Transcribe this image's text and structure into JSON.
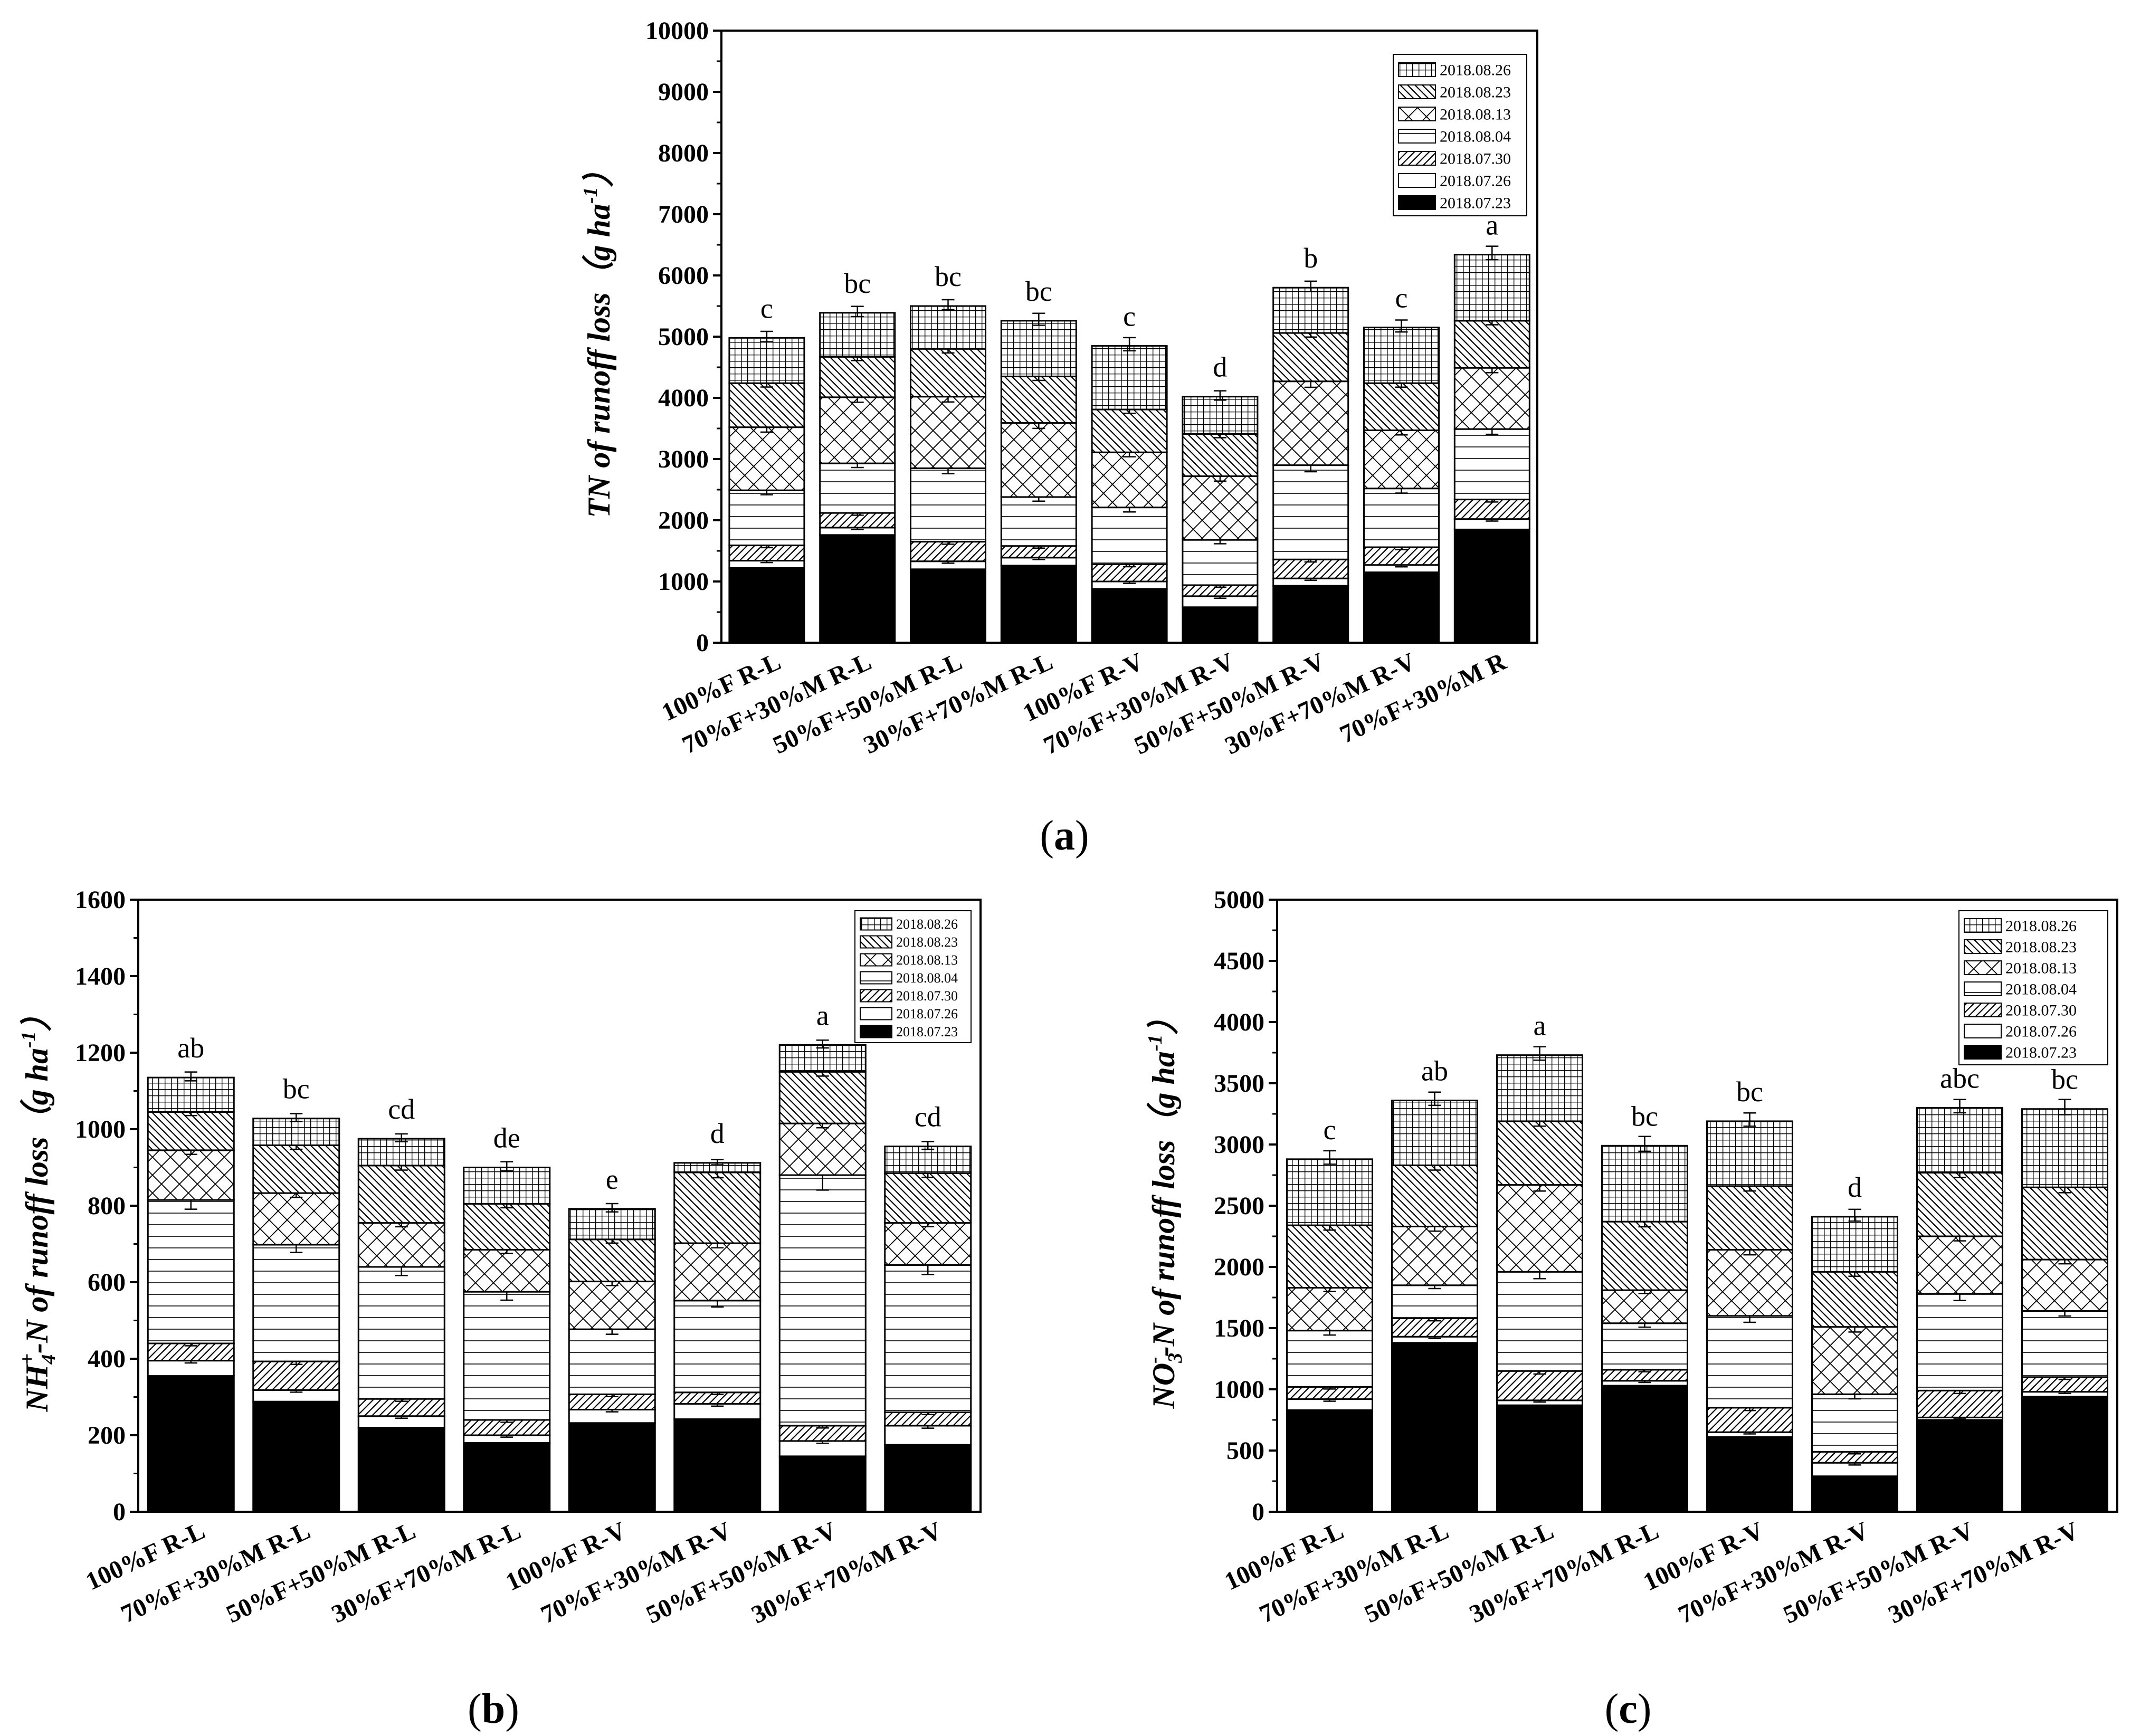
{
  "chart_data": [
    {
      "id": "a",
      "type": "bar",
      "stacked": true,
      "panel_label": "a",
      "ylabel": "TN of runoff loss（g ha^-1）",
      "ylabel_parts": {
        "main": "TN of runoff loss（g ha",
        "sup": "-1",
        "end": "）"
      },
      "ylim": [
        0,
        10000
      ],
      "yticks": [
        "0",
        "1000",
        "2000",
        "3000",
        "4000",
        "5000",
        "6000",
        "7000",
        "8000",
        "9000",
        "10000"
      ],
      "legend_position": "top-right",
      "categories": [
        "100%F R-L",
        "70%F+30%M R-L",
        "50%F+50%M R-L",
        "30%F+70%M R-L",
        "100%F R-V",
        "70%F+30%M R-V",
        "50%F+50%M R-V",
        "30%F+70%M R-V",
        "70%F+30%M R"
      ],
      "significance": [
        "c",
        "bc",
        "bc",
        "bc",
        "c",
        "d",
        "b",
        "c",
        "a"
      ],
      "series": [
        {
          "name": "2018.07.23",
          "pattern": "solid",
          "values": [
            1220,
            1760,
            1200,
            1260,
            880,
            580,
            930,
            1150,
            1850
          ]
        },
        {
          "name": "2018.07.26",
          "pattern": "blank",
          "values": [
            120,
            120,
            130,
            130,
            120,
            180,
            120,
            120,
            170
          ]
        },
        {
          "name": "2018.07.30",
          "pattern": "diag",
          "values": [
            250,
            240,
            320,
            190,
            280,
            180,
            310,
            290,
            320
          ]
        },
        {
          "name": "2018.08.04",
          "pattern": "hlines",
          "values": [
            900,
            810,
            1200,
            800,
            930,
            740,
            1540,
            960,
            1150
          ]
        },
        {
          "name": "2018.08.13",
          "pattern": "cross",
          "values": [
            1030,
            1080,
            1170,
            1210,
            900,
            1040,
            1370,
            950,
            1000
          ]
        },
        {
          "name": "2018.08.23",
          "pattern": "antidiag",
          "values": [
            720,
            660,
            780,
            760,
            700,
            690,
            790,
            770,
            770
          ]
        },
        {
          "name": "2018.08.26",
          "pattern": "grid",
          "values": [
            740,
            720,
            700,
            910,
            1040,
            610,
            740,
            910,
            1080
          ]
        }
      ]
    },
    {
      "id": "b",
      "type": "bar",
      "stacked": true,
      "panel_label": "b",
      "ylabel": "NH4+-N of runoff loss（g ha^-1）",
      "ylabel_parts": {
        "main": "NH",
        "sub": "4",
        "sup": "+",
        "rest": "-N of runoff loss（g ha",
        "sup2": "-1",
        "end": "）"
      },
      "ylim": [
        0,
        1600
      ],
      "yticks": [
        "0",
        "200",
        "400",
        "600",
        "800",
        "1000",
        "1200",
        "1400",
        "1600"
      ],
      "legend_position": "top-right",
      "categories": [
        "100%F R-L",
        "70%F+30%M R-L",
        "50%F+50%M R-L",
        "30%F+70%M R-L",
        "100%F R-V",
        "70%F+30%M R-V",
        "50%F+50%M R-V",
        "30%F+70%M R-V"
      ],
      "significance": [
        "ab",
        "bc",
        "cd",
        "de",
        "e",
        "d",
        "a",
        "cd"
      ],
      "series": [
        {
          "name": "2018.07.23",
          "pattern": "solid",
          "values": [
            355,
            288,
            220,
            180,
            232,
            242,
            145,
            175
          ]
        },
        {
          "name": "2018.07.26",
          "pattern": "blank",
          "values": [
            40,
            30,
            30,
            20,
            35,
            40,
            40,
            50
          ]
        },
        {
          "name": "2018.07.30",
          "pattern": "diag",
          "values": [
            45,
            75,
            45,
            40,
            40,
            30,
            40,
            35
          ]
        },
        {
          "name": "2018.08.04",
          "pattern": "hlines",
          "values": [
            375,
            305,
            345,
            335,
            170,
            240,
            655,
            385
          ]
        },
        {
          "name": "2018.08.13",
          "pattern": "cross",
          "values": [
            130,
            135,
            115,
            110,
            125,
            150,
            135,
            110
          ]
        },
        {
          "name": "2018.08.23",
          "pattern": "antidiag",
          "values": [
            100,
            125,
            150,
            120,
            110,
            185,
            135,
            130
          ]
        },
        {
          "name": "2018.08.26",
          "pattern": "grid",
          "values": [
            90,
            70,
            70,
            95,
            80,
            25,
            70,
            70
          ]
        }
      ]
    },
    {
      "id": "c",
      "type": "bar",
      "stacked": true,
      "panel_label": "c",
      "ylabel": "NO3--N of runoff loss（g ha^-1）",
      "ylabel_parts": {
        "main": "NO",
        "sub": "3",
        "sup": "-",
        "rest": "-N of runoff loss（g ha",
        "sup2": "-1",
        "end": "）"
      },
      "ylim": [
        0,
        5000
      ],
      "yticks": [
        "0",
        "500",
        "1000",
        "1500",
        "2000",
        "2500",
        "3000",
        "3500",
        "4000",
        "4500",
        "5000"
      ],
      "legend_position": "top-right",
      "categories": [
        "100%F R-L",
        "70%F+30%M R-L",
        "50%F+50%M R-L",
        "30%F+70%M R-L",
        "100%F R-V",
        "70%F+30%M R-V",
        "50%F+50%M R-V",
        "30%F+70%M R-V"
      ],
      "significance": [
        "c",
        "ab",
        "a",
        "bc",
        "bc",
        "d",
        "abc",
        "bc"
      ],
      "series": [
        {
          "name": "2018.07.23",
          "pattern": "solid",
          "values": [
            830,
            1380,
            870,
            1030,
            610,
            290,
            750,
            940
          ]
        },
        {
          "name": "2018.07.26",
          "pattern": "blank",
          "values": [
            90,
            50,
            40,
            40,
            40,
            110,
            20,
            40
          ]
        },
        {
          "name": "2018.07.30",
          "pattern": "diag",
          "values": [
            100,
            150,
            240,
            90,
            200,
            90,
            220,
            120
          ]
        },
        {
          "name": "2018.08.04",
          "pattern": "hlines",
          "values": [
            460,
            270,
            810,
            380,
            750,
            470,
            790,
            540
          ]
        },
        {
          "name": "2018.08.13",
          "pattern": "cross",
          "values": [
            350,
            480,
            710,
            270,
            540,
            550,
            470,
            420
          ]
        },
        {
          "name": "2018.08.23",
          "pattern": "antidiag",
          "values": [
            510,
            500,
            520,
            560,
            520,
            450,
            520,
            590
          ]
        },
        {
          "name": "2018.08.26",
          "pattern": "grid",
          "values": [
            540,
            530,
            540,
            620,
            530,
            450,
            530,
            640
          ]
        }
      ]
    }
  ]
}
